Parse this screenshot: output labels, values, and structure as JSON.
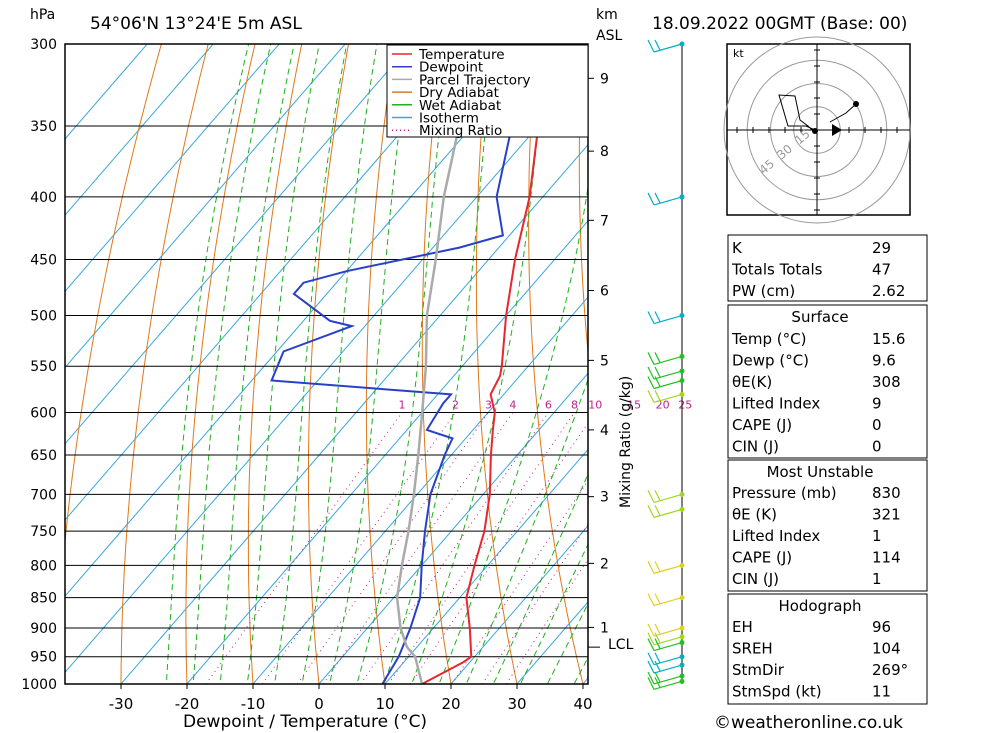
{
  "header": {
    "location": "54°06'N  13°24'E  5m  ASL",
    "datetime": "18.09.2022  00GMT  (Base: 00)",
    "hpa_unit": "hPa",
    "km_unit": "km",
    "asl_unit": "ASL"
  },
  "chart_data": {
    "type": "line",
    "title": "",
    "xlabel": "Dewpoint / Temperature (°C)",
    "ylabel": "hPa",
    "right_axis_label": "Mixing Ratio (g/kg)",
    "x_range": [
      -40,
      40
    ],
    "pressure_range": [
      1000,
      300
    ],
    "x_ticks": [
      -30,
      -20,
      -10,
      0,
      10,
      20,
      30,
      40
    ],
    "pressure_levels": [
      300,
      350,
      400,
      450,
      500,
      550,
      600,
      650,
      700,
      750,
      800,
      850,
      900,
      950,
      1000
    ],
    "km_ticks": [
      {
        "label": "9",
        "p": 320
      },
      {
        "label": "8",
        "p": 367
      },
      {
        "label": "7",
        "p": 418
      },
      {
        "label": "6",
        "p": 477
      },
      {
        "label": "5",
        "p": 544
      },
      {
        "label": "4",
        "p": 620
      },
      {
        "label": "3",
        "p": 703
      },
      {
        "label": "2",
        "p": 797
      },
      {
        "label": "1",
        "p": 899
      }
    ],
    "lcl": {
      "label": "LCL",
      "p": 933
    },
    "mixing_ratio_labels": [
      "1",
      "2",
      "3",
      "4",
      "6",
      "8",
      "10",
      "15",
      "20",
      "25"
    ],
    "legend": [
      "Temperature",
      "Dewpoint",
      "Parcel Trajectory",
      "Dry Adiabat",
      "Wet Adiabat",
      "Isotherm",
      "Mixing Ratio"
    ],
    "legend_position": "top-right",
    "series": [
      {
        "name": "Temperature",
        "color": "#e8262d",
        "points": [
          [
            1000,
            15.6
          ],
          [
            960,
            19
          ],
          [
            950,
            19.5
          ],
          [
            900,
            15.5
          ],
          [
            850,
            11
          ],
          [
            800,
            8
          ],
          [
            750,
            5
          ],
          [
            700,
            1
          ],
          [
            650,
            -4
          ],
          [
            620,
            -7
          ],
          [
            600,
            -9
          ],
          [
            580,
            -12
          ],
          [
            560,
            -13
          ],
          [
            550,
            -14
          ],
          [
            500,
            -20
          ],
          [
            450,
            -26
          ],
          [
            400,
            -32
          ],
          [
            350,
            -40
          ],
          [
            300,
            -49
          ]
        ]
      },
      {
        "name": "Dewpoint",
        "color": "#2840c8",
        "points": [
          [
            1000,
            9.6
          ],
          [
            950,
            8.5
          ],
          [
            900,
            6.5
          ],
          [
            850,
            4
          ],
          [
            800,
            0
          ],
          [
            750,
            -4
          ],
          [
            700,
            -8
          ],
          [
            650,
            -11
          ],
          [
            630,
            -12
          ],
          [
            620,
            -17
          ],
          [
            590,
            -18
          ],
          [
            580,
            -18
          ],
          [
            565,
            -47
          ],
          [
            535,
            -49
          ],
          [
            510,
            -42
          ],
          [
            505,
            -46
          ],
          [
            480,
            -55
          ],
          [
            470,
            -55
          ],
          [
            460,
            -50
          ],
          [
            440,
            -36
          ],
          [
            430,
            -31
          ],
          [
            400,
            -37
          ],
          [
            350,
            -44
          ],
          [
            300,
            -53
          ]
        ]
      },
      {
        "name": "Parcel Trajectory",
        "color": "#aaaaaa",
        "points": [
          [
            1000,
            15.6
          ],
          [
            950,
            11
          ],
          [
            933,
            8.5
          ],
          [
            900,
            5
          ],
          [
            850,
            0.5
          ],
          [
            800,
            -3
          ],
          [
            750,
            -6.5
          ],
          [
            700,
            -10.5
          ],
          [
            650,
            -15
          ],
          [
            600,
            -20
          ],
          [
            550,
            -25.5
          ],
          [
            500,
            -32
          ],
          [
            450,
            -38
          ],
          [
            400,
            -45
          ],
          [
            350,
            -52
          ],
          [
            320,
            -57
          ]
        ]
      }
    ],
    "wind_barbs": [
      {
        "p": 300,
        "color": "#00b0c0"
      },
      {
        "p": 400,
        "color": "#00b0c0"
      },
      {
        "p": 500,
        "color": "#00b0c0"
      },
      {
        "p": 540,
        "color": "#20c020"
      },
      {
        "p": 555,
        "color": "#20c020"
      },
      {
        "p": 565,
        "color": "#20c020"
      },
      {
        "p": 580,
        "color": "#a0d820"
      },
      {
        "p": 700,
        "color": "#a0d820"
      },
      {
        "p": 720,
        "color": "#a0d820"
      },
      {
        "p": 800,
        "color": "#e0d020"
      },
      {
        "p": 850,
        "color": "#e0d020"
      },
      {
        "p": 900,
        "color": "#e0d020"
      },
      {
        "p": 915,
        "color": "#a0d820"
      },
      {
        "p": 925,
        "color": "#20c020"
      },
      {
        "p": 950,
        "color": "#00b0c0"
      },
      {
        "p": 965,
        "color": "#00b0c0"
      },
      {
        "p": 985,
        "color": "#20c020"
      },
      {
        "p": 995,
        "color": "#20c020"
      }
    ]
  },
  "hodograph": {
    "unit": "kt",
    "ring_labels": [
      "15",
      "30",
      "45"
    ]
  },
  "indices_box": {
    "rows": [
      {
        "label": "K",
        "value": "29"
      },
      {
        "label": "Totals Totals",
        "value": "47"
      },
      {
        "label": "PW (cm)",
        "value": "2.62"
      }
    ]
  },
  "surface_box": {
    "title": "Surface",
    "rows": [
      {
        "label": "Temp (°C)",
        "value": "15.6"
      },
      {
        "label": "Dewp (°C)",
        "value": "9.6"
      },
      {
        "label": "θE(K)",
        "value": "308"
      },
      {
        "label": "Lifted Index",
        "value": "9"
      },
      {
        "label": "CAPE (J)",
        "value": "0"
      },
      {
        "label": "CIN (J)",
        "value": "0"
      }
    ]
  },
  "unstable_box": {
    "title": "Most Unstable",
    "rows": [
      {
        "label": "Pressure (mb)",
        "value": "830"
      },
      {
        "label": "θE (K)",
        "value": "321"
      },
      {
        "label": "Lifted Index",
        "value": "1"
      },
      {
        "label": "CAPE (J)",
        "value": "114"
      },
      {
        "label": "CIN (J)",
        "value": "1"
      }
    ]
  },
  "hodo_box": {
    "title": "Hodograph",
    "rows": [
      {
        "label": "EH",
        "value": "96"
      },
      {
        "label": "SREH",
        "value": "104"
      },
      {
        "label": "StmDir",
        "value": "269°"
      },
      {
        "label": "StmSpd (kt)",
        "value": "11"
      }
    ]
  },
  "footer": {
    "copyright": "©weatheronline.co.uk"
  }
}
